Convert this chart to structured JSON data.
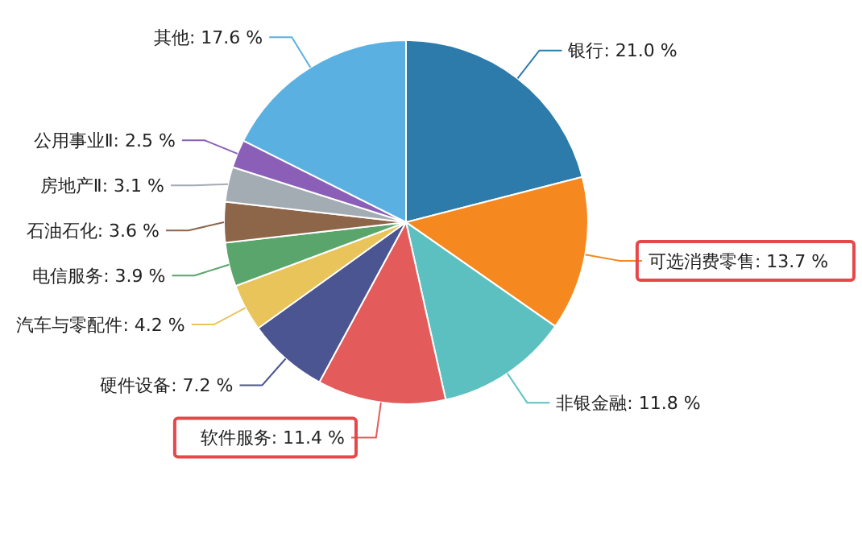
{
  "chart_data": {
    "type": "pie",
    "categories": [
      "银行",
      "可选消费零售",
      "非银金融",
      "软件服务",
      "硬件设备",
      "汽车与零配件",
      "电信服务",
      "石油石化",
      "房地产Ⅱ",
      "公用事业Ⅱ",
      "其他"
    ],
    "values": [
      21.0,
      13.7,
      11.8,
      11.4,
      7.2,
      4.2,
      3.9,
      3.6,
      3.1,
      2.5,
      17.6
    ],
    "value_labels": [
      "21.0 %",
      "13.7 %",
      "11.8 %",
      "11.4 %",
      "7.2 %",
      "4.2 %",
      "3.9 %",
      "3.6 %",
      "3.1 %",
      "2.5 %",
      "17.6 %"
    ],
    "colors": [
      "#2c7bab",
      "#f5891f",
      "#5cc0c0",
      "#e35b5b",
      "#4a5592",
      "#e9c45b",
      "#5aa56c",
      "#8d6549",
      "#a3abb3",
      "#8b5fb7",
      "#5ab1e1"
    ]
  }
}
